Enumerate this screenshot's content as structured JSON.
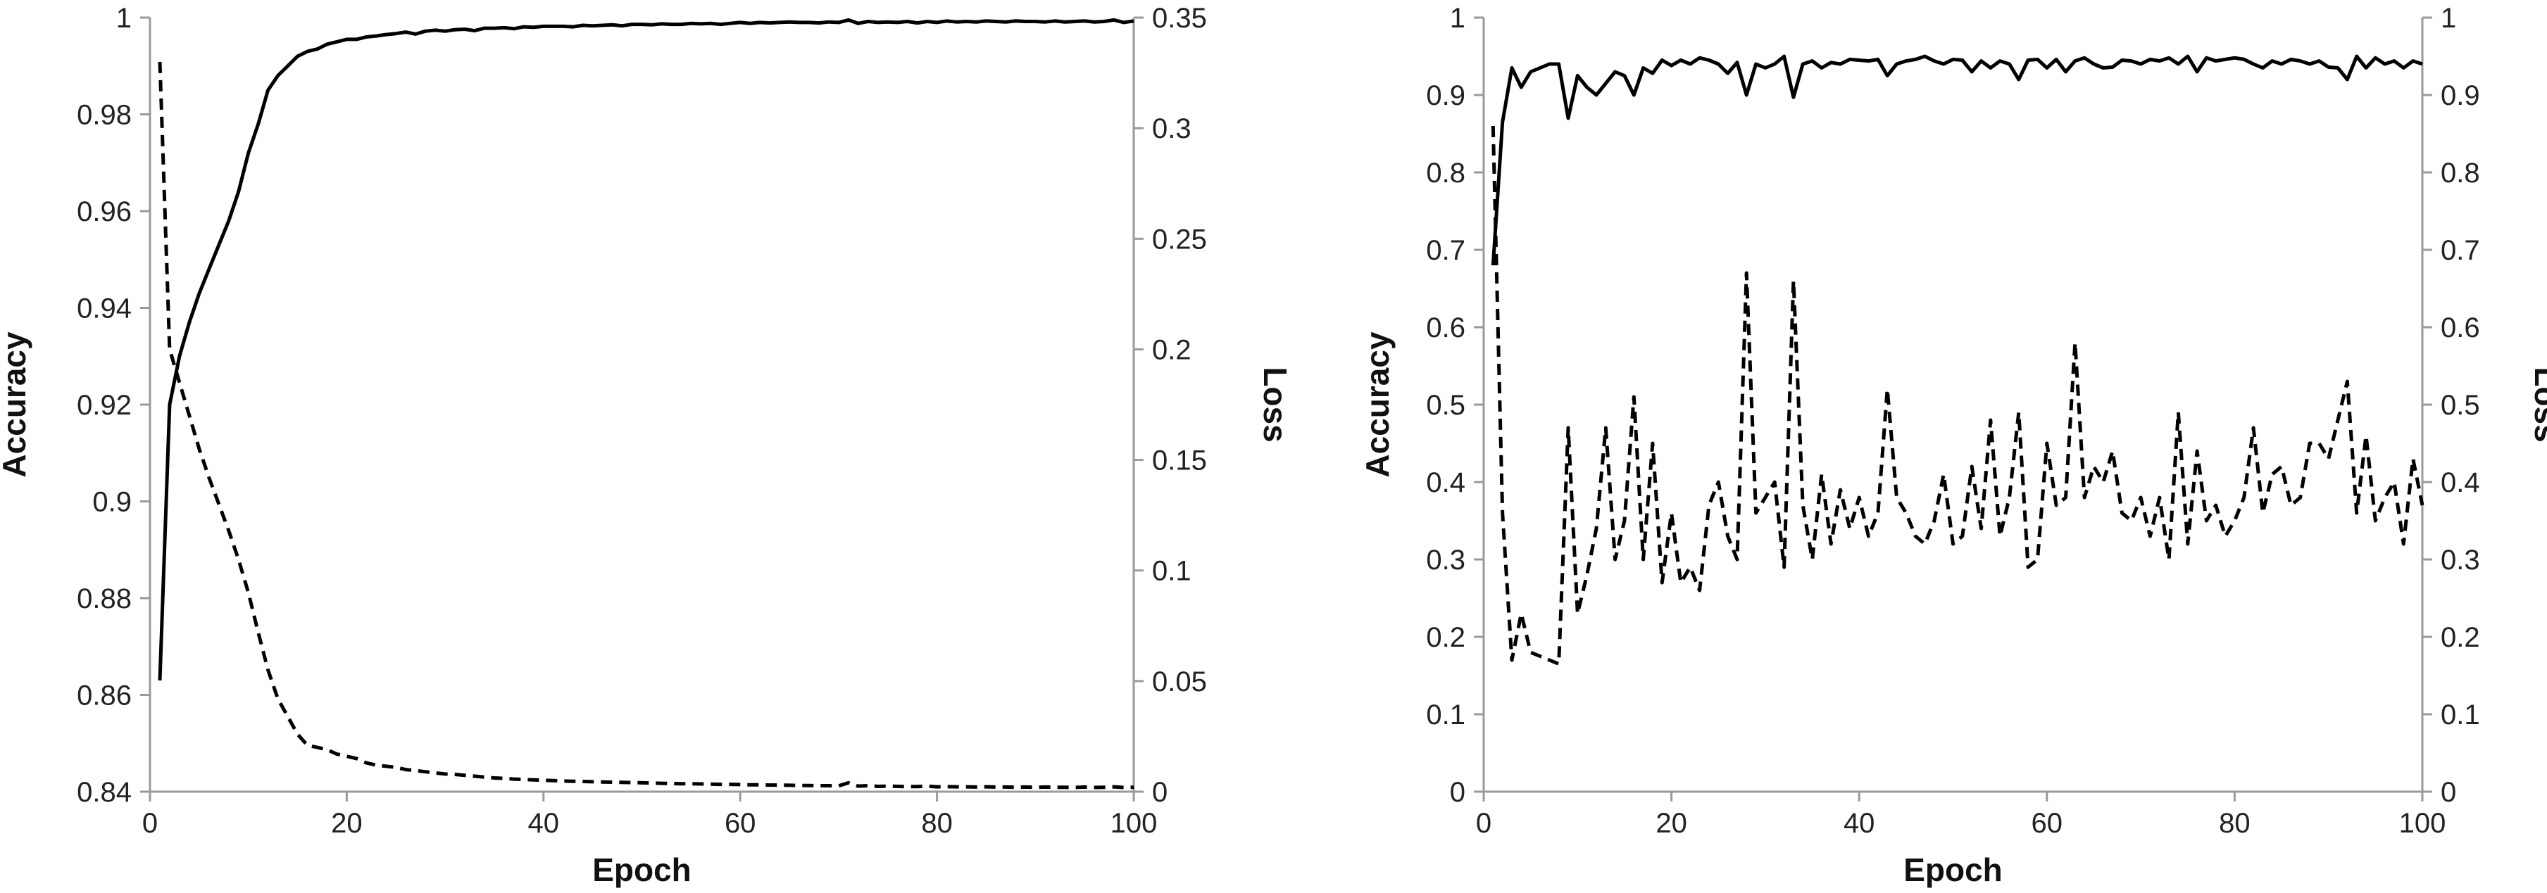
{
  "chart_data": [
    {
      "type": "line",
      "xlabel": "Epoch",
      "ylabel": "Accuracy",
      "y2label": "Loss",
      "xlim": [
        0,
        100
      ],
      "ylim": [
        0.84,
        1.0
      ],
      "y2lim": [
        0,
        0.35
      ],
      "xticks": [
        "0",
        "20",
        "40",
        "60",
        "80",
        "100"
      ],
      "yticks": [
        "0.84",
        "0.86",
        "0.88",
        "0.9",
        "0.92",
        "0.94",
        "0.96",
        "0.98",
        "1"
      ],
      "y2ticks": [
        "0",
        "0.05",
        "0.1",
        "0.15",
        "0.2",
        "0.25",
        "0.3",
        "0.35"
      ],
      "grid": false,
      "line_color": "#000000",
      "series": [
        {
          "axis": "left",
          "style": "solid",
          "x": [
            1,
            2,
            3,
            4,
            5,
            6,
            7,
            8,
            9,
            10,
            11,
            12,
            13,
            14,
            15,
            16,
            17,
            18,
            19,
            20,
            21,
            22,
            23,
            24,
            25,
            26,
            27,
            28,
            29,
            30,
            31,
            32,
            33,
            34,
            35,
            36,
            37,
            38,
            39,
            40,
            41,
            42,
            43,
            44,
            45,
            46,
            47,
            48,
            49,
            50,
            51,
            52,
            53,
            54,
            55,
            56,
            57,
            58,
            59,
            60,
            61,
            62,
            63,
            64,
            65,
            66,
            67,
            68,
            69,
            70,
            71,
            72,
            73,
            74,
            75,
            76,
            77,
            78,
            79,
            80,
            81,
            82,
            83,
            84,
            85,
            86,
            87,
            88,
            89,
            90,
            91,
            92,
            93,
            94,
            95,
            96,
            97,
            98,
            99,
            100
          ],
          "values": [
            0.863,
            0.92,
            0.93,
            0.937,
            0.943,
            0.948,
            0.953,
            0.958,
            0.964,
            0.972,
            0.978,
            0.985,
            0.988,
            0.99,
            0.992,
            0.993,
            0.9935,
            0.9945,
            0.995,
            0.9955,
            0.9955,
            0.996,
            0.9962,
            0.9965,
            0.9967,
            0.997,
            0.9966,
            0.9972,
            0.9974,
            0.9972,
            0.9975,
            0.9976,
            0.9973,
            0.9978,
            0.9978,
            0.9979,
            0.9977,
            0.9981,
            0.998,
            0.9982,
            0.9982,
            0.9982,
            0.9981,
            0.9984,
            0.9983,
            0.9984,
            0.9985,
            0.9983,
            0.9986,
            0.9986,
            0.9985,
            0.9987,
            0.9986,
            0.9986,
            0.9988,
            0.9987,
            0.9988,
            0.9986,
            0.9988,
            0.999,
            0.9988,
            0.999,
            0.9989,
            0.999,
            0.9991,
            0.999,
            0.999,
            0.9989,
            0.9991,
            0.999,
            0.9995,
            0.9988,
            0.9992,
            0.999,
            0.9991,
            0.999,
            0.9992,
            0.9989,
            0.9992,
            0.999,
            0.9993,
            0.9991,
            0.9992,
            0.9991,
            0.9993,
            0.9992,
            0.9991,
            0.9993,
            0.9992,
            0.9992,
            0.9991,
            0.9993,
            0.9991,
            0.9992,
            0.9993,
            0.9991,
            0.9992,
            0.9995,
            0.999,
            0.9993
          ]
        },
        {
          "axis": "right",
          "style": "dashed",
          "x": [
            1,
            2,
            3,
            4,
            5,
            6,
            7,
            8,
            9,
            10,
            11,
            12,
            13,
            14,
            15,
            16,
            17,
            18,
            19,
            20,
            21,
            22,
            23,
            24,
            25,
            26,
            27,
            28,
            29,
            30,
            31,
            32,
            33,
            34,
            35,
            36,
            37,
            38,
            39,
            40,
            41,
            42,
            43,
            44,
            45,
            46,
            47,
            48,
            49,
            50,
            51,
            52,
            53,
            54,
            55,
            56,
            57,
            58,
            59,
            60,
            61,
            62,
            63,
            64,
            65,
            66,
            67,
            68,
            69,
            70,
            71,
            72,
            73,
            74,
            75,
            76,
            77,
            78,
            79,
            80,
            81,
            82,
            83,
            84,
            85,
            86,
            87,
            88,
            89,
            90,
            91,
            92,
            93,
            94,
            95,
            96,
            97,
            98,
            99,
            100
          ],
          "values": [
            0.33,
            0.2,
            0.185,
            0.17,
            0.155,
            0.142,
            0.13,
            0.118,
            0.105,
            0.09,
            0.072,
            0.055,
            0.042,
            0.034,
            0.026,
            0.021,
            0.02,
            0.019,
            0.017,
            0.016,
            0.015,
            0.013,
            0.012,
            0.0115,
            0.011,
            0.01,
            0.0095,
            0.009,
            0.0085,
            0.008,
            0.0078,
            0.0074,
            0.007,
            0.0066,
            0.0062,
            0.006,
            0.0057,
            0.0055,
            0.0053,
            0.0052,
            0.005,
            0.0048,
            0.0047,
            0.0046,
            0.0045,
            0.0044,
            0.0043,
            0.0042,
            0.0041,
            0.004,
            0.0039,
            0.0038,
            0.0037,
            0.0036,
            0.0036,
            0.0035,
            0.0034,
            0.0033,
            0.0033,
            0.0032,
            0.0031,
            0.0031,
            0.003,
            0.003,
            0.0029,
            0.0028,
            0.0028,
            0.0027,
            0.0027,
            0.0026,
            0.004,
            0.0025,
            0.0027,
            0.0024,
            0.0025,
            0.0024,
            0.0023,
            0.0023,
            0.0025,
            0.0022,
            0.0023,
            0.0022,
            0.0022,
            0.0021,
            0.0022,
            0.0021,
            0.0021,
            0.002,
            0.0021,
            0.002,
            0.0021,
            0.002,
            0.002,
            0.0019,
            0.0021,
            0.0019,
            0.002,
            0.0022,
            0.0019,
            0.002
          ]
        }
      ]
    },
    {
      "type": "line",
      "xlabel": "Epoch",
      "ylabel": "Accuracy",
      "y2label": "Loss",
      "xlim": [
        0,
        100
      ],
      "ylim": [
        0,
        1.0
      ],
      "y2lim": [
        0,
        1.0
      ],
      "xticks": [
        "0",
        "20",
        "40",
        "60",
        "80",
        "100"
      ],
      "yticks": [
        "0",
        "0.1",
        "0.2",
        "0.3",
        "0.4",
        "0.5",
        "0.6",
        "0.7",
        "0.8",
        "0.9",
        "1"
      ],
      "y2ticks": [
        "0",
        "0.1",
        "0.2",
        "0.3",
        "0.4",
        "0.5",
        "0.6",
        "0.7",
        "0.8",
        "0.9",
        "1"
      ],
      "grid": false,
      "line_color": "#000000",
      "series": [
        {
          "axis": "left",
          "style": "solid",
          "x": [
            1,
            2,
            3,
            4,
            5,
            6,
            7,
            8,
            9,
            10,
            11,
            12,
            13,
            14,
            15,
            16,
            17,
            18,
            19,
            20,
            21,
            22,
            23,
            24,
            25,
            26,
            27,
            28,
            29,
            30,
            31,
            32,
            33,
            34,
            35,
            36,
            37,
            38,
            39,
            40,
            41,
            42,
            43,
            44,
            45,
            46,
            47,
            48,
            49,
            50,
            51,
            52,
            53,
            54,
            55,
            56,
            57,
            58,
            59,
            60,
            61,
            62,
            63,
            64,
            65,
            66,
            67,
            68,
            69,
            70,
            71,
            72,
            73,
            74,
            75,
            76,
            77,
            78,
            79,
            80,
            81,
            82,
            83,
            84,
            85,
            86,
            87,
            88,
            89,
            90,
            91,
            92,
            93,
            94,
            95,
            96,
            97,
            98,
            99,
            100
          ],
          "values": [
            0.68,
            0.865,
            0.935,
            0.91,
            0.93,
            0.935,
            0.94,
            0.94,
            0.87,
            0.925,
            0.91,
            0.9,
            0.915,
            0.93,
            0.925,
            0.9,
            0.935,
            0.928,
            0.945,
            0.938,
            0.945,
            0.94,
            0.948,
            0.945,
            0.94,
            0.928,
            0.942,
            0.9,
            0.94,
            0.935,
            0.94,
            0.95,
            0.897,
            0.94,
            0.944,
            0.935,
            0.942,
            0.94,
            0.946,
            0.945,
            0.944,
            0.946,
            0.925,
            0.94,
            0.944,
            0.946,
            0.95,
            0.944,
            0.94,
            0.946,
            0.945,
            0.93,
            0.944,
            0.935,
            0.944,
            0.94,
            0.92,
            0.945,
            0.946,
            0.935,
            0.946,
            0.93,
            0.944,
            0.948,
            0.94,
            0.935,
            0.936,
            0.945,
            0.944,
            0.94,
            0.946,
            0.944,
            0.948,
            0.94,
            0.95,
            0.93,
            0.948,
            0.944,
            0.946,
            0.948,
            0.946,
            0.94,
            0.935,
            0.944,
            0.94,
            0.946,
            0.944,
            0.94,
            0.944,
            0.936,
            0.935,
            0.92,
            0.95,
            0.935,
            0.948,
            0.94,
            0.944,
            0.935,
            0.944,
            0.94
          ]
        },
        {
          "axis": "right",
          "style": "dashed",
          "x": [
            1,
            2,
            3,
            4,
            5,
            6,
            7,
            8,
            9,
            10,
            11,
            12,
            13,
            14,
            15,
            16,
            17,
            18,
            19,
            20,
            21,
            22,
            23,
            24,
            25,
            26,
            27,
            28,
            29,
            30,
            31,
            32,
            33,
            34,
            35,
            36,
            37,
            38,
            39,
            40,
            41,
            42,
            43,
            44,
            45,
            46,
            47,
            48,
            49,
            50,
            51,
            52,
            53,
            54,
            55,
            56,
            57,
            58,
            59,
            60,
            61,
            62,
            63,
            64,
            65,
            66,
            67,
            68,
            69,
            70,
            71,
            72,
            73,
            74,
            75,
            76,
            77,
            78,
            79,
            80,
            81,
            82,
            83,
            84,
            85,
            86,
            87,
            88,
            89,
            90,
            91,
            92,
            93,
            94,
            95,
            96,
            97,
            98,
            99,
            100
          ],
          "values": [
            0.86,
            0.36,
            0.17,
            0.23,
            0.18,
            0.175,
            0.17,
            0.165,
            0.47,
            0.23,
            0.28,
            0.34,
            0.47,
            0.3,
            0.35,
            0.51,
            0.3,
            0.45,
            0.27,
            0.36,
            0.27,
            0.29,
            0.26,
            0.37,
            0.4,
            0.33,
            0.3,
            0.67,
            0.36,
            0.38,
            0.4,
            0.29,
            0.66,
            0.37,
            0.3,
            0.41,
            0.32,
            0.39,
            0.34,
            0.38,
            0.33,
            0.36,
            0.52,
            0.38,
            0.36,
            0.33,
            0.32,
            0.35,
            0.41,
            0.32,
            0.33,
            0.42,
            0.34,
            0.48,
            0.33,
            0.38,
            0.49,
            0.29,
            0.3,
            0.45,
            0.37,
            0.38,
            0.58,
            0.38,
            0.42,
            0.4,
            0.44,
            0.36,
            0.35,
            0.38,
            0.33,
            0.38,
            0.3,
            0.49,
            0.32,
            0.44,
            0.35,
            0.37,
            0.33,
            0.35,
            0.38,
            0.47,
            0.36,
            0.41,
            0.42,
            0.37,
            0.38,
            0.45,
            0.45,
            0.43,
            0.48,
            0.53,
            0.36,
            0.46,
            0.35,
            0.38,
            0.4,
            0.32,
            0.43,
            0.37
          ]
        }
      ]
    }
  ]
}
